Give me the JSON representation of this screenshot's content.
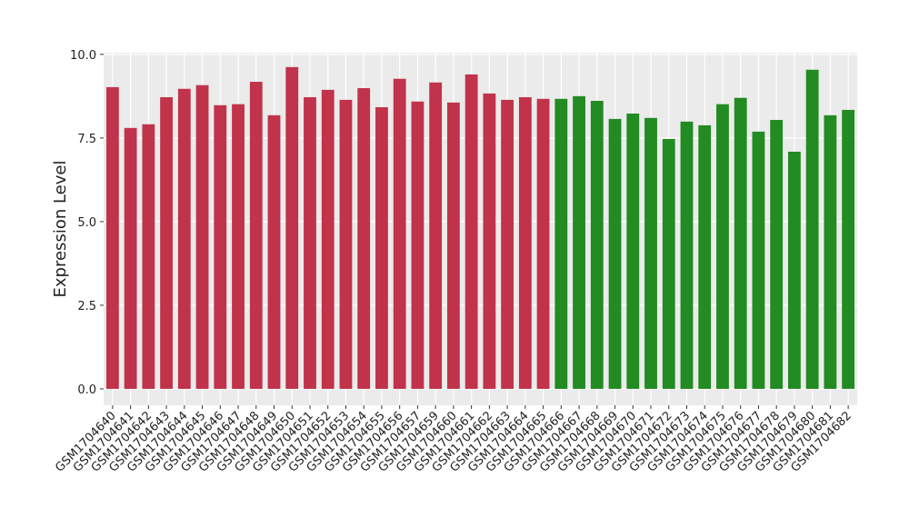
{
  "chart_data": {
    "type": "bar",
    "y_label": "Expression Level",
    "categories": [
      "GSM1704640",
      "GSM1704641",
      "GSM1704642",
      "GSM1704643",
      "GSM1704644",
      "GSM1704645",
      "GSM1704646",
      "GSM1704647",
      "GSM1704648",
      "GSM1704649",
      "GSM1704650",
      "GSM1704651",
      "GSM1704652",
      "GSM1704653",
      "GSM1704654",
      "GSM1704655",
      "GSM1704656",
      "GSM1704657",
      "GSM1704659",
      "GSM1704660",
      "GSM1704661",
      "GSM1704662",
      "GSM1704663",
      "GSM1704664",
      "GSM1704665",
      "GSM1704666",
      "GSM1704667",
      "GSM1704668",
      "GSM1704669",
      "GSM1704670",
      "GSM1704671",
      "GSM1704672",
      "GSM1704673",
      "GSM1704674",
      "GSM1704675",
      "GSM1704676",
      "GSM1704677",
      "GSM1704678",
      "GSM1704679",
      "GSM1704680",
      "GSM1704681",
      "GSM1704682"
    ],
    "values": [
      9.02,
      7.8,
      7.91,
      8.72,
      8.97,
      9.08,
      8.48,
      8.51,
      9.18,
      8.18,
      9.62,
      8.72,
      8.94,
      8.64,
      8.99,
      8.42,
      9.27,
      8.59,
      9.16,
      8.56,
      9.4,
      8.83,
      8.64,
      8.72,
      8.67,
      8.67,
      8.75,
      8.61,
      8.07,
      8.23,
      8.1,
      7.47,
      7.99,
      7.88,
      8.51,
      8.7,
      7.69,
      8.04,
      7.09,
      9.54,
      8.18,
      8.34
    ],
    "colors": [
      "#c0334a",
      "#c0334a",
      "#c0334a",
      "#c0334a",
      "#c0334a",
      "#c0334a",
      "#c0334a",
      "#c0334a",
      "#c0334a",
      "#c0334a",
      "#c0334a",
      "#c0334a",
      "#c0334a",
      "#c0334a",
      "#c0334a",
      "#c0334a",
      "#c0334a",
      "#c0334a",
      "#c0334a",
      "#c0334a",
      "#c0334a",
      "#c0334a",
      "#c0334a",
      "#c0334a",
      "#c0334a",
      "#228b22",
      "#228b22",
      "#228b22",
      "#228b22",
      "#228b22",
      "#228b22",
      "#228b22",
      "#228b22",
      "#228b22",
      "#228b22",
      "#228b22",
      "#228b22",
      "#228b22",
      "#228b22",
      "#228b22",
      "#228b22",
      "#228b22"
    ],
    "ylim": [
      -0.49,
      10.05
    ],
    "yticks": [
      {
        "value": 0,
        "label": "0.0"
      },
      2.5,
      {
        "value": 5,
        "label": "5.0"
      },
      7.5,
      {
        "value": 10,
        "label": "10.0"
      }
    ],
    "grid": true
  }
}
